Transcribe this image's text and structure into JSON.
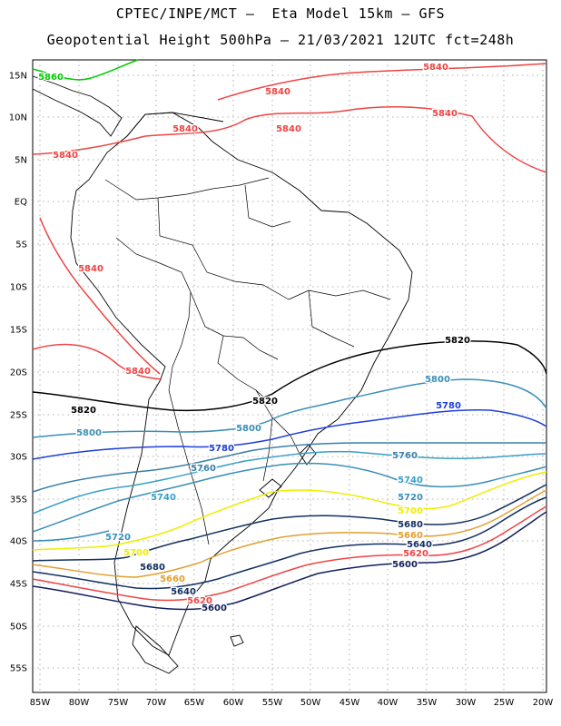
{
  "title_line1": "CPTEC/INPE/MCT –  Eta Model 15km – GFS",
  "title_line2": "Geopotential Height 500hPa – 21/03/2021 12UTC fct=248h",
  "lat_labels": [
    "15N",
    "10N",
    "5N",
    "EQ",
    "5S",
    "10S",
    "15S",
    "20S",
    "25S",
    "30S",
    "35S",
    "40S",
    "45S",
    "50S",
    "55S"
  ],
  "lon_labels": [
    "85W",
    "80W",
    "75W",
    "70W",
    "65W",
    "60W",
    "55W",
    "50W",
    "45W",
    "40W",
    "35W",
    "30W",
    "25W",
    "20W"
  ],
  "contours": [
    {
      "value": "5860",
      "color": "#00cc00"
    },
    {
      "value": "5840",
      "color": "#ee4444"
    },
    {
      "value": "5820",
      "color": "#000000"
    },
    {
      "value": "5800",
      "color": "#3a8fb7"
    },
    {
      "value": "5780",
      "color": "#1f3fd8"
    },
    {
      "value": "5760",
      "color": "#3a7fa8"
    },
    {
      "value": "5740",
      "color": "#3a9fc8"
    },
    {
      "value": "5720",
      "color": "#3a8fb7"
    },
    {
      "value": "5700",
      "color": "#eeee00"
    },
    {
      "value": "5680",
      "color": "#123060"
    },
    {
      "value": "5660",
      "color": "#e0a030"
    },
    {
      "value": "5640",
      "color": "#123060"
    },
    {
      "value": "5620",
      "color": "#ee4444"
    },
    {
      "value": "5600",
      "color": "#101e5c"
    }
  ]
}
